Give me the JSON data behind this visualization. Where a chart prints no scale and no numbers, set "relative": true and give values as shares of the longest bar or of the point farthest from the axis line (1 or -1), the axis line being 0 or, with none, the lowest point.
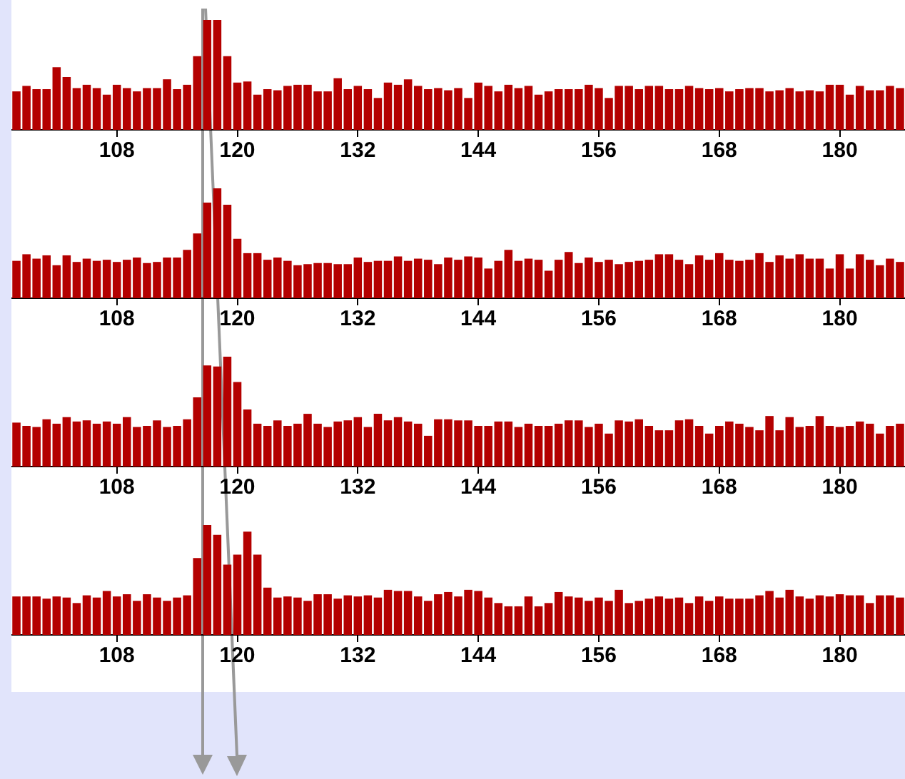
{
  "chart_data": [
    {
      "type": "bar",
      "relative": true,
      "color": "#b40000",
      "xlim": [
        97.5,
        186.5
      ],
      "xticks": [
        108,
        120,
        132,
        144,
        156,
        168,
        180
      ],
      "x": [
        98,
        99,
        100,
        101,
        102,
        103,
        104,
        105,
        106,
        107,
        108,
        109,
        110,
        111,
        112,
        113,
        114,
        115,
        116,
        117,
        118,
        119,
        120,
        121,
        122,
        123,
        124,
        125,
        126,
        127,
        128,
        129,
        130,
        131,
        132,
        133,
        134,
        135,
        136,
        137,
        138,
        139,
        140,
        141,
        142,
        143,
        144,
        145,
        146,
        147,
        148,
        149,
        150,
        151,
        152,
        153,
        154,
        155,
        156,
        157,
        158,
        159,
        160,
        161,
        162,
        163,
        164,
        165,
        166,
        167,
        168,
        169,
        170,
        171,
        172,
        173,
        174,
        175,
        176,
        177,
        178,
        179,
        180,
        181,
        182,
        183,
        184,
        185,
        186
      ],
      "values": [
        0.35,
        0.4,
        0.37,
        0.37,
        0.57,
        0.48,
        0.38,
        0.41,
        0.38,
        0.32,
        0.41,
        0.38,
        0.35,
        0.38,
        0.38,
        0.46,
        0.37,
        0.41,
        0.67,
        1,
        1,
        0.67,
        0.43,
        0.44,
        0.32,
        0.37,
        0.36,
        0.4,
        0.41,
        0.41,
        0.35,
        0.35,
        0.47,
        0.37,
        0.4,
        0.37,
        0.29,
        0.43,
        0.41,
        0.46,
        0.4,
        0.37,
        0.38,
        0.36,
        0.38,
        0.29,
        0.43,
        0.4,
        0.35,
        0.41,
        0.38,
        0.4,
        0.32,
        0.35,
        0.37,
        0.37,
        0.37,
        0.41,
        0.38,
        0.29,
        0.4,
        0.4,
        0.37,
        0.4,
        0.4,
        0.37,
        0.37,
        0.4,
        0.38,
        0.37,
        0.38,
        0.35,
        0.37,
        0.38,
        0.38,
        0.35,
        0.36,
        0.38,
        0.35,
        0.36,
        0.35,
        0.41,
        0.41,
        0.32,
        0.4,
        0.36,
        0.36,
        0.4,
        0.38
      ]
    },
    {
      "type": "bar",
      "relative": true,
      "color": "#b40000",
      "xlim": [
        97.5,
        186.5
      ],
      "xticks": [
        108,
        120,
        132,
        144,
        156,
        168,
        180
      ],
      "x": [
        98,
        99,
        100,
        101,
        102,
        103,
        104,
        105,
        106,
        107,
        108,
        109,
        110,
        111,
        112,
        113,
        114,
        115,
        116,
        117,
        118,
        119,
        120,
        121,
        122,
        123,
        124,
        125,
        126,
        127,
        128,
        129,
        130,
        131,
        132,
        133,
        134,
        135,
        136,
        137,
        138,
        139,
        140,
        141,
        142,
        143,
        144,
        145,
        146,
        147,
        148,
        149,
        150,
        151,
        152,
        153,
        154,
        155,
        156,
        157,
        158,
        159,
        160,
        161,
        162,
        163,
        164,
        165,
        166,
        167,
        168,
        169,
        170,
        171,
        172,
        173,
        174,
        175,
        176,
        177,
        178,
        179,
        180,
        181,
        182,
        183,
        184,
        185,
        186
      ],
      "values": [
        0.34,
        0.4,
        0.36,
        0.39,
        0.3,
        0.39,
        0.33,
        0.36,
        0.34,
        0.35,
        0.33,
        0.35,
        0.37,
        0.32,
        0.33,
        0.37,
        0.37,
        0.44,
        0.59,
        0.87,
        1,
        0.85,
        0.54,
        0.41,
        0.41,
        0.35,
        0.37,
        0.34,
        0.3,
        0.31,
        0.32,
        0.32,
        0.31,
        0.31,
        0.37,
        0.33,
        0.34,
        0.34,
        0.38,
        0.34,
        0.36,
        0.35,
        0.31,
        0.37,
        0.35,
        0.38,
        0.37,
        0.27,
        0.34,
        0.44,
        0.34,
        0.36,
        0.35,
        0.25,
        0.35,
        0.42,
        0.32,
        0.37,
        0.33,
        0.35,
        0.31,
        0.33,
        0.34,
        0.35,
        0.4,
        0.4,
        0.35,
        0.31,
        0.39,
        0.35,
        0.41,
        0.35,
        0.34,
        0.35,
        0.41,
        0.33,
        0.39,
        0.36,
        0.4,
        0.36,
        0.36,
        0.27,
        0.4,
        0.27,
        0.4,
        0.35,
        0.3,
        0.36,
        0.33
      ]
    },
    {
      "type": "bar",
      "relative": true,
      "color": "#b40000",
      "xlim": [
        97.5,
        186.5
      ],
      "xticks": [
        108,
        120,
        132,
        144,
        156,
        168,
        180
      ],
      "x": [
        98,
        99,
        100,
        101,
        102,
        103,
        104,
        105,
        106,
        107,
        108,
        109,
        110,
        111,
        112,
        113,
        114,
        115,
        116,
        117,
        118,
        119,
        120,
        121,
        122,
        123,
        124,
        125,
        126,
        127,
        128,
        129,
        130,
        131,
        132,
        133,
        134,
        135,
        136,
        137,
        138,
        139,
        140,
        141,
        142,
        143,
        144,
        145,
        146,
        147,
        148,
        149,
        150,
        151,
        152,
        153,
        154,
        155,
        156,
        157,
        158,
        159,
        160,
        161,
        162,
        163,
        164,
        165,
        166,
        167,
        168,
        169,
        170,
        171,
        172,
        173,
        174,
        175,
        176,
        177,
        178,
        179,
        180,
        181,
        182,
        183,
        184,
        185,
        186
      ],
      "values": [
        0.4,
        0.37,
        0.36,
        0.43,
        0.39,
        0.45,
        0.41,
        0.42,
        0.39,
        0.41,
        0.39,
        0.45,
        0.36,
        0.37,
        0.42,
        0.36,
        0.37,
        0.43,
        0.63,
        0.92,
        0.91,
        1,
        0.77,
        0.52,
        0.39,
        0.37,
        0.42,
        0.37,
        0.39,
        0.48,
        0.39,
        0.36,
        0.41,
        0.42,
        0.45,
        0.36,
        0.48,
        0.42,
        0.45,
        0.41,
        0.39,
        0.28,
        0.43,
        0.43,
        0.42,
        0.42,
        0.37,
        0.37,
        0.41,
        0.41,
        0.36,
        0.39,
        0.37,
        0.37,
        0.39,
        0.42,
        0.42,
        0.36,
        0.39,
        0.3,
        0.42,
        0.41,
        0.43,
        0.37,
        0.33,
        0.33,
        0.42,
        0.43,
        0.37,
        0.3,
        0.37,
        0.41,
        0.39,
        0.36,
        0.33,
        0.46,
        0.33,
        0.45,
        0.36,
        0.37,
        0.46,
        0.37,
        0.36,
        0.37,
        0.41,
        0.39,
        0.3,
        0.37,
        0.39
      ]
    },
    {
      "type": "bar",
      "relative": true,
      "color": "#b40000",
      "xlim": [
        97.5,
        186.5
      ],
      "xticks": [
        108,
        120,
        132,
        144,
        156,
        168,
        180
      ],
      "x": [
        98,
        99,
        100,
        101,
        102,
        103,
        104,
        105,
        106,
        107,
        108,
        109,
        110,
        111,
        112,
        113,
        114,
        115,
        116,
        117,
        118,
        119,
        120,
        121,
        122,
        123,
        124,
        125,
        126,
        127,
        128,
        129,
        130,
        131,
        132,
        133,
        134,
        135,
        136,
        137,
        138,
        139,
        140,
        141,
        142,
        143,
        144,
        145,
        146,
        147,
        148,
        149,
        150,
        151,
        152,
        153,
        154,
        155,
        156,
        157,
        158,
        159,
        160,
        161,
        162,
        163,
        164,
        165,
        166,
        167,
        168,
        169,
        170,
        171,
        172,
        173,
        174,
        175,
        176,
        177,
        178,
        179,
        180,
        181,
        182,
        183,
        184,
        185,
        186
      ],
      "values": [
        0.35,
        0.35,
        0.35,
        0.33,
        0.35,
        0.34,
        0.29,
        0.36,
        0.34,
        0.4,
        0.35,
        0.37,
        0.31,
        0.37,
        0.34,
        0.31,
        0.34,
        0.36,
        0.7,
        1,
        0.91,
        0.64,
        0.73,
        0.94,
        0.73,
        0.43,
        0.34,
        0.35,
        0.34,
        0.31,
        0.37,
        0.37,
        0.33,
        0.36,
        0.35,
        0.36,
        0.34,
        0.41,
        0.4,
        0.4,
        0.35,
        0.31,
        0.37,
        0.39,
        0.35,
        0.41,
        0.4,
        0.34,
        0.29,
        0.26,
        0.26,
        0.35,
        0.26,
        0.29,
        0.39,
        0.35,
        0.34,
        0.31,
        0.34,
        0.31,
        0.41,
        0.29,
        0.31,
        0.33,
        0.35,
        0.33,
        0.34,
        0.29,
        0.35,
        0.31,
        0.35,
        0.33,
        0.33,
        0.33,
        0.36,
        0.4,
        0.34,
        0.41,
        0.35,
        0.33,
        0.36,
        0.35,
        0.37,
        0.36,
        0.36,
        0.29,
        0.36,
        0.36,
        0.34
      ]
    }
  ]
}
